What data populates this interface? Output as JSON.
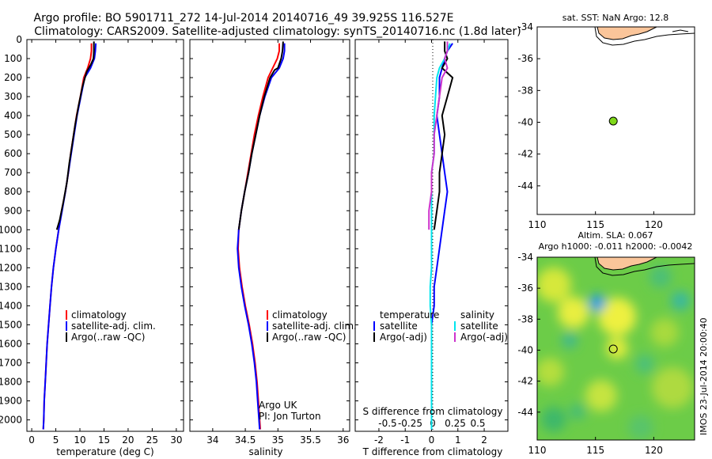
{
  "header": {
    "title_line1": "Argo profile: BO 5901711_272 14-Jul-2014 20140716_49 39.925S 116.527E",
    "title_line2": "Climatology: CARS2009. Satellite-adjusted climatology: synTS_20140716.nc (1.8d later)"
  },
  "colors": {
    "climatology": "#ff0000",
    "satellite": "#0000ff",
    "argo": "#000000",
    "sat_salinity": "#00e5ee",
    "argo_adj_salinity": "#cc33cc",
    "land": "#fac59a",
    "marker": "#7fd81a"
  },
  "chart_data": [
    {
      "id": "temperature",
      "type": "line",
      "xlabel": "temperature (deg C)",
      "ylabel": "",
      "xlim": [
        -1,
        31.5
      ],
      "ylim": [
        2060,
        0
      ],
      "x_ticks": [
        0,
        5,
        10,
        15,
        20,
        25,
        30
      ],
      "y_ticks": [
        0,
        100,
        200,
        300,
        400,
        500,
        600,
        700,
        800,
        900,
        1000,
        1100,
        1200,
        1300,
        1400,
        1500,
        1600,
        1700,
        1800,
        1900,
        2000
      ],
      "legend": [
        "climatology",
        "satellite-adj. clim.",
        "Argo(..raw -QC)"
      ],
      "series": [
        {
          "name": "climatology",
          "color_key": "climatology",
          "points": [
            [
              12.4,
              20
            ],
            [
              12.4,
              60
            ],
            [
              12.2,
              100
            ],
            [
              11.6,
              150
            ],
            [
              10.8,
              200
            ],
            [
              10.1,
              300
            ],
            [
              9.3,
              400
            ],
            [
              8.7,
              500
            ],
            [
              8.1,
              600
            ],
            [
              7.6,
              700
            ],
            [
              7.0,
              800
            ],
            [
              6.2,
              900
            ],
            [
              5.6,
              1000
            ],
            [
              5.0,
              1100
            ],
            [
              4.5,
              1200
            ],
            [
              4.1,
              1300
            ],
            [
              3.8,
              1400
            ],
            [
              3.5,
              1500
            ],
            [
              3.2,
              1600
            ],
            [
              3.0,
              1700
            ],
            [
              2.8,
              1800
            ],
            [
              2.6,
              1900
            ],
            [
              2.5,
              2000
            ],
            [
              2.4,
              2050
            ]
          ]
        },
        {
          "name": "satellite-adj. clim.",
          "color_key": "satellite",
          "points": [
            [
              13.3,
              20
            ],
            [
              13.2,
              60
            ],
            [
              13.0,
              100
            ],
            [
              12.2,
              150
            ],
            [
              11.0,
              200
            ],
            [
              10.2,
              300
            ],
            [
              9.4,
              400
            ],
            [
              8.8,
              500
            ],
            [
              8.2,
              600
            ],
            [
              7.6,
              700
            ],
            [
              7.0,
              800
            ],
            [
              6.3,
              900
            ],
            [
              5.6,
              1000
            ],
            [
              5.0,
              1100
            ],
            [
              4.5,
              1200
            ],
            [
              4.1,
              1300
            ],
            [
              3.8,
              1400
            ],
            [
              3.5,
              1500
            ],
            [
              3.2,
              1600
            ],
            [
              3.0,
              1700
            ],
            [
              2.8,
              1800
            ],
            [
              2.6,
              1900
            ],
            [
              2.5,
              2000
            ],
            [
              2.4,
              2050
            ]
          ]
        },
        {
          "name": "Argo(..raw -QC)",
          "color_key": "argo",
          "points": [
            [
              12.9,
              10
            ],
            [
              12.9,
              60
            ],
            [
              12.8,
              100
            ],
            [
              12.3,
              130
            ],
            [
              11.4,
              170
            ],
            [
              10.5,
              250
            ],
            [
              9.7,
              350
            ],
            [
              9.0,
              450
            ],
            [
              8.4,
              550
            ],
            [
              7.8,
              650
            ],
            [
              7.3,
              750
            ],
            [
              6.6,
              850
            ],
            [
              5.8,
              950
            ],
            [
              5.2,
              1000
            ]
          ]
        }
      ]
    },
    {
      "id": "salinity",
      "type": "line",
      "xlabel": "salinity",
      "ylabel": "",
      "xlim": [
        33.65,
        36.1
      ],
      "ylim": [
        2060,
        0
      ],
      "x_ticks": [
        34,
        34.5,
        35,
        35.5,
        36
      ],
      "legend": [
        "climatology",
        "satellite-adj. clim.",
        "Argo(..raw -QC)"
      ],
      "annotations": [
        "Argo UK",
        "PI: Jon Turton"
      ],
      "series": [
        {
          "name": "climatology",
          "color_key": "climatology",
          "points": [
            [
              35.02,
              20
            ],
            [
              35.02,
              60
            ],
            [
              34.99,
              100
            ],
            [
              34.92,
              150
            ],
            [
              34.85,
              200
            ],
            [
              34.77,
              300
            ],
            [
              34.7,
              400
            ],
            [
              34.64,
              500
            ],
            [
              34.59,
              600
            ],
            [
              34.54,
              700
            ],
            [
              34.49,
              800
            ],
            [
              34.44,
              900
            ],
            [
              34.4,
              1000
            ],
            [
              34.39,
              1100
            ],
            [
              34.41,
              1200
            ],
            [
              34.45,
              1300
            ],
            [
              34.5,
              1400
            ],
            [
              34.56,
              1500
            ],
            [
              34.61,
              1600
            ],
            [
              34.65,
              1700
            ],
            [
              34.68,
              1800
            ],
            [
              34.7,
              1900
            ],
            [
              34.72,
              2000
            ],
            [
              34.73,
              2050
            ]
          ]
        },
        {
          "name": "satellite-adj. clim.",
          "color_key": "satellite",
          "points": [
            [
              35.1,
              20
            ],
            [
              35.1,
              60
            ],
            [
              35.08,
              100
            ],
            [
              35.02,
              150
            ],
            [
              34.9,
              200
            ],
            [
              34.8,
              300
            ],
            [
              34.72,
              400
            ],
            [
              34.66,
              500
            ],
            [
              34.6,
              600
            ],
            [
              34.55,
              700
            ],
            [
              34.49,
              800
            ],
            [
              34.44,
              900
            ],
            [
              34.4,
              1000
            ],
            [
              34.38,
              1100
            ],
            [
              34.4,
              1200
            ],
            [
              34.44,
              1300
            ],
            [
              34.49,
              1400
            ],
            [
              34.55,
              1500
            ],
            [
              34.6,
              1600
            ],
            [
              34.64,
              1700
            ],
            [
              34.67,
              1800
            ],
            [
              34.69,
              1900
            ],
            [
              34.71,
              2000
            ],
            [
              34.72,
              2050
            ]
          ]
        },
        {
          "name": "Argo(..raw -QC)",
          "color_key": "argo",
          "points": [
            [
              35.08,
              10
            ],
            [
              35.07,
              60
            ],
            [
              35.05,
              100
            ],
            [
              35.0,
              150
            ],
            [
              34.95,
              160
            ],
            [
              34.88,
              200
            ],
            [
              34.79,
              300
            ],
            [
              34.72,
              400
            ],
            [
              34.66,
              500
            ],
            [
              34.6,
              600
            ],
            [
              34.55,
              700
            ],
            [
              34.49,
              800
            ],
            [
              34.44,
              900
            ],
            [
              34.4,
              1000
            ]
          ]
        }
      ]
    },
    {
      "id": "difference",
      "type": "line",
      "xlabel": "T difference from climatology",
      "ylabel": "",
      "xlim": [
        -2.9,
        2.9
      ],
      "ylim": [
        2060,
        0
      ],
      "x_ticks": [
        -2,
        -1,
        0,
        1,
        2
      ],
      "top_label": "S difference from climatology",
      "s_ticks": [
        -0.5,
        -0.25,
        0,
        0.25,
        0.5
      ],
      "legend_temperature": {
        "title": "temperature",
        "items": [
          "satellite",
          "Argo(-adj)"
        ]
      },
      "legend_salinity": {
        "title": "salinity",
        "items": [
          "satellite",
          "Argo(-adj)"
        ]
      },
      "series": [
        {
          "name": "temperature satellite",
          "color_key": "satellite",
          "points": [
            [
              0.8,
              20
            ],
            [
              0.6,
              60
            ],
            [
              0.5,
              100
            ],
            [
              0.4,
              150
            ],
            [
              0.3,
              200
            ],
            [
              0.3,
              300
            ],
            [
              0.2,
              400
            ],
            [
              0.3,
              500
            ],
            [
              0.4,
              600
            ],
            [
              0.5,
              700
            ],
            [
              0.6,
              800
            ],
            [
              0.5,
              900
            ],
            [
              0.4,
              1000
            ],
            [
              0.3,
              1100
            ],
            [
              0.2,
              1200
            ],
            [
              0.1,
              1300
            ],
            [
              0.1,
              1400
            ],
            [
              0.0,
              1500
            ],
            [
              0.0,
              1600
            ],
            [
              0.0,
              1700
            ],
            [
              0.0,
              1800
            ],
            [
              0.0,
              1900
            ],
            [
              0.0,
              2000
            ],
            [
              0.0,
              2050
            ]
          ]
        },
        {
          "name": "temperature Argo(-adj)",
          "color_key": "argo",
          "points": [
            [
              0.5,
              10
            ],
            [
              0.5,
              60
            ],
            [
              0.6,
              100
            ],
            [
              0.4,
              150
            ],
            [
              0.8,
              200
            ],
            [
              0.6,
              300
            ],
            [
              0.4,
              400
            ],
            [
              0.5,
              500
            ],
            [
              0.4,
              600
            ],
            [
              0.3,
              700
            ],
            [
              0.3,
              800
            ],
            [
              0.2,
              900
            ],
            [
              0.1,
              1000
            ]
          ]
        },
        {
          "name": "salinity satellite",
          "color_key": "sat_salinity",
          "points": [
            [
              0.7,
              20
            ],
            [
              0.6,
              60
            ],
            [
              0.5,
              100
            ],
            [
              0.3,
              150
            ],
            [
              0.2,
              200
            ],
            [
              0.15,
              300
            ],
            [
              0.1,
              400
            ],
            [
              0.1,
              500
            ],
            [
              0.1,
              600
            ],
            [
              0.0,
              700
            ],
            [
              0.0,
              800
            ],
            [
              0.0,
              900
            ],
            [
              0.0,
              1000
            ],
            [
              0.0,
              1100
            ],
            [
              0.0,
              1200
            ],
            [
              -0.05,
              1300
            ],
            [
              -0.05,
              1400
            ],
            [
              0.0,
              1500
            ],
            [
              0.0,
              1600
            ],
            [
              0.0,
              1700
            ],
            [
              0.0,
              1800
            ],
            [
              0.0,
              1900
            ],
            [
              0.0,
              2000
            ],
            [
              0.0,
              2050
            ]
          ]
        },
        {
          "name": "salinity Argo(-adj)",
          "color_key": "argo_adj_salinity",
          "points": [
            [
              0.6,
              10
            ],
            [
              0.6,
              60
            ],
            [
              0.5,
              100
            ],
            [
              0.6,
              150
            ],
            [
              0.4,
              200
            ],
            [
              0.3,
              300
            ],
            [
              0.2,
              400
            ],
            [
              0.1,
              500
            ],
            [
              0.1,
              600
            ],
            [
              0.0,
              700
            ],
            [
              0.0,
              800
            ],
            [
              -0.1,
              900
            ],
            [
              -0.1,
              1000
            ]
          ]
        }
      ]
    },
    {
      "id": "sst_map",
      "type": "scatter",
      "title": "sat. SST: NaN Argo: 12.8",
      "xlim": [
        110,
        123.5
      ],
      "ylim": [
        -45.8,
        -34
      ],
      "x_ticks": [
        110,
        115,
        120
      ],
      "y_ticks": [
        -34,
        -36,
        -38,
        -40,
        -42,
        -44
      ],
      "points": [
        {
          "lon": 116.527,
          "lat": -39.925
        }
      ]
    },
    {
      "id": "sla_map",
      "type": "heatmap",
      "title_line1": "Altim. SLA: 0.067",
      "title_line2": "Argo h1000: -0.011 h2000: -0.0042",
      "xlim": [
        110,
        123.5
      ],
      "ylim": [
        -45.8,
        -34
      ],
      "x_ticks": [
        110,
        115,
        120
      ],
      "y_ticks": [
        -34,
        -36,
        -38,
        -40,
        -42,
        -44
      ],
      "points": [
        {
          "lon": 116.527,
          "lat": -39.925
        }
      ],
      "side_label": "IMOS 23-Jul-2014 20:00:40"
    }
  ]
}
